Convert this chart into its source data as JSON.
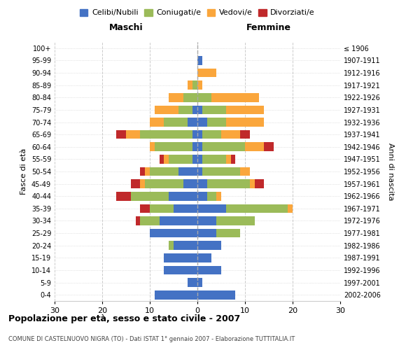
{
  "age_groups": [
    "0-4",
    "5-9",
    "10-14",
    "15-19",
    "20-24",
    "25-29",
    "30-34",
    "35-39",
    "40-44",
    "45-49",
    "50-54",
    "55-59",
    "60-64",
    "65-69",
    "70-74",
    "75-79",
    "80-84",
    "85-89",
    "90-94",
    "95-99",
    "100+"
  ],
  "birth_years": [
    "2002-2006",
    "1997-2001",
    "1992-1996",
    "1987-1991",
    "1982-1986",
    "1977-1981",
    "1972-1976",
    "1967-1971",
    "1962-1966",
    "1957-1961",
    "1952-1956",
    "1947-1951",
    "1942-1946",
    "1937-1941",
    "1932-1936",
    "1927-1931",
    "1922-1926",
    "1917-1921",
    "1912-1916",
    "1907-1911",
    "≤ 1906"
  ],
  "maschi": {
    "celibi": [
      9,
      2,
      7,
      7,
      5,
      10,
      8,
      5,
      6,
      3,
      4,
      1,
      1,
      1,
      2,
      1,
      0,
      0,
      0,
      0,
      0
    ],
    "coniugati": [
      0,
      0,
      0,
      0,
      1,
      0,
      4,
      5,
      8,
      8,
      6,
      5,
      8,
      11,
      5,
      3,
      3,
      1,
      0,
      0,
      0
    ],
    "vedovi": [
      0,
      0,
      0,
      0,
      0,
      0,
      0,
      0,
      0,
      1,
      1,
      1,
      1,
      3,
      3,
      5,
      3,
      1,
      0,
      0,
      0
    ],
    "divorziati": [
      0,
      0,
      0,
      0,
      0,
      0,
      1,
      2,
      3,
      2,
      1,
      1,
      0,
      2,
      0,
      0,
      0,
      0,
      0,
      0,
      0
    ]
  },
  "femmine": {
    "nubili": [
      8,
      1,
      5,
      3,
      5,
      4,
      4,
      6,
      2,
      2,
      1,
      1,
      1,
      1,
      2,
      1,
      0,
      0,
      0,
      1,
      0
    ],
    "coniugate": [
      0,
      0,
      0,
      0,
      0,
      5,
      8,
      13,
      2,
      9,
      8,
      5,
      9,
      4,
      4,
      5,
      3,
      0,
      0,
      0,
      0
    ],
    "vedove": [
      0,
      0,
      0,
      0,
      0,
      0,
      0,
      1,
      1,
      1,
      2,
      1,
      4,
      4,
      8,
      8,
      10,
      1,
      4,
      0,
      0
    ],
    "divorziate": [
      0,
      0,
      0,
      0,
      0,
      0,
      0,
      0,
      0,
      2,
      0,
      1,
      2,
      2,
      0,
      0,
      0,
      0,
      0,
      0,
      0
    ]
  },
  "color_celibi": "#4472C4",
  "color_coniugati": "#9BBB59",
  "color_vedovi": "#FAA63C",
  "color_divorziati": "#C0292B",
  "xlim": 30,
  "title_main": "Popolazione per età, sesso e stato civile - 2007",
  "title_sub": "COMUNE DI CASTELNUOVO NIGRA (TO) - Dati ISTAT 1° gennaio 2007 - Elaborazione TUTTITALIA.IT",
  "ylabel_left": "Fasce di età",
  "ylabel_right": "Anni di nascita",
  "label_maschi": "Maschi",
  "label_femmine": "Femmine",
  "legend_celibi": "Celibi/Nubili",
  "legend_coniugati": "Coniugati/e",
  "legend_vedovi": "Vedovi/e",
  "legend_divorziati": "Divorziati/e"
}
